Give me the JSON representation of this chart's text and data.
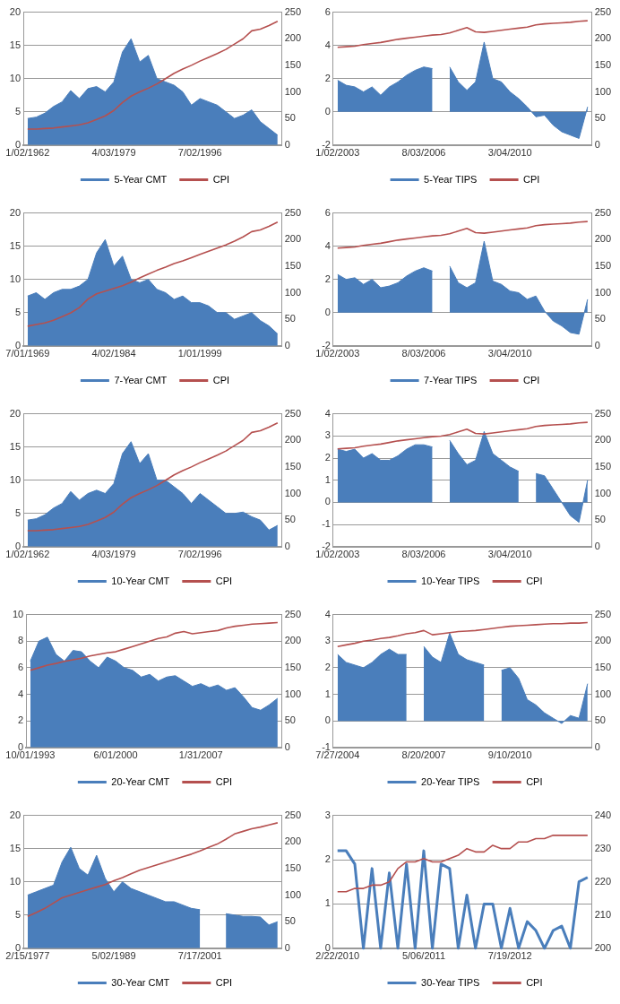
{
  "chart_data": [
    {
      "type": "area",
      "categories": [
        "1/02/1962",
        null,
        null,
        null,
        null,
        null,
        null,
        null,
        null,
        null,
        "4/03/1979",
        null,
        null,
        null,
        null,
        null,
        null,
        null,
        null,
        null,
        "7/02/1996",
        null,
        null,
        null,
        null,
        null,
        null,
        null,
        null,
        null
      ],
      "ylim": [
        0,
        20
      ],
      "yticks": [
        0,
        5,
        10,
        15,
        20
      ],
      "y2lim": [
        0,
        250
      ],
      "y2ticks": [
        0,
        50,
        100,
        150,
        200,
        250
      ],
      "grid": "y",
      "legend": "bottom",
      "marker": "none",
      "series": [
        {
          "name": "5-Year CMT",
          "color": "#4a7ebb",
          "values": [
            4,
            4.2,
            4.8,
            5.8,
            6.5,
            8.2,
            7,
            8.5,
            8.8,
            8,
            9.5,
            14,
            16,
            12.5,
            13.5,
            10,
            9.5,
            9,
            8,
            6,
            7,
            6.5,
            6,
            5,
            4,
            4.5,
            5.3,
            3.5,
            2.5,
            1.5
          ]
        },
        {
          "name": "CPI",
          "type": "line",
          "axis": "y2",
          "color": "#b5504f",
          "values": [
            30,
            30,
            31,
            32,
            34,
            36,
            38,
            42,
            48,
            55,
            65,
            80,
            92,
            100,
            107,
            115,
            125,
            135,
            143,
            150,
            158,
            165,
            172,
            180,
            190,
            200,
            215,
            218,
            225,
            233
          ]
        }
      ]
    },
    {
      "type": "area",
      "categories": [
        "1/02/2003",
        null,
        null,
        null,
        null,
        null,
        null,
        null,
        null,
        null,
        "8/03/2006",
        null,
        null,
        null,
        null,
        null,
        null,
        null,
        null,
        null,
        "3/04/2010",
        null,
        null,
        null,
        null,
        null,
        null,
        null,
        null,
        null
      ],
      "ylim": [
        -2,
        6
      ],
      "yticks": [
        -2,
        0,
        2,
        4,
        6
      ],
      "y2lim": [
        0,
        250
      ],
      "y2ticks": [
        0,
        50,
        100,
        150,
        200,
        250
      ],
      "grid": "y",
      "legend": "bottom",
      "marker": "none",
      "series": [
        {
          "name": "5-Year TIPS",
          "color": "#4a7ebb",
          "values": [
            1.9,
            1.6,
            1.5,
            1.2,
            1.5,
            1,
            1.5,
            1.8,
            2.2,
            2.5,
            2.7,
            2.6,
            null,
            2.7,
            1.8,
            1.3,
            1.8,
            4.2,
            2,
            1.8,
            1.2,
            0.8,
            0.3,
            -0.3,
            -0.2,
            -0.8,
            -1.2,
            -1.4,
            -1.6,
            0.3
          ]
        },
        {
          "name": "CPI",
          "type": "line",
          "axis": "y2",
          "color": "#b5504f",
          "values": [
            184,
            185,
            186,
            189,
            191,
            193,
            196,
            199,
            201,
            203,
            205,
            207,
            208,
            211,
            216,
            221,
            213,
            212,
            214,
            216,
            218,
            220,
            222,
            226,
            228,
            229,
            230,
            231,
            233,
            234
          ]
        }
      ]
    },
    {
      "type": "area",
      "categories": [
        "7/01/1969",
        null,
        null,
        null,
        null,
        null,
        null,
        null,
        null,
        null,
        "4/02/1984",
        null,
        null,
        null,
        null,
        null,
        null,
        null,
        null,
        null,
        "1/01/1999",
        null,
        null,
        null,
        null,
        null,
        null,
        null,
        null,
        null
      ],
      "ylim": [
        0,
        20
      ],
      "yticks": [
        0,
        5,
        10,
        15,
        20
      ],
      "y2lim": [
        0,
        250
      ],
      "y2ticks": [
        0,
        50,
        100,
        150,
        200,
        250
      ],
      "grid": "y",
      "legend": "bottom",
      "marker": "none",
      "series": [
        {
          "name": "7-Year CMT",
          "color": "#4a7ebb",
          "values": [
            7.5,
            8,
            7,
            8,
            8.5,
            8.5,
            9,
            10,
            14,
            16,
            12,
            13.5,
            10,
            9.5,
            10,
            8.5,
            8,
            7,
            7.5,
            6.5,
            6.5,
            6,
            5,
            5,
            4,
            4.5,
            5,
            3.8,
            3,
            1.8
          ]
        },
        {
          "name": "CPI",
          "type": "line",
          "axis": "y2",
          "color": "#b5504f",
          "values": [
            37,
            40,
            43,
            48,
            55,
            62,
            72,
            88,
            98,
            103,
            108,
            113,
            120,
            128,
            135,
            142,
            148,
            155,
            160,
            166,
            172,
            178,
            184,
            190,
            197,
            205,
            215,
            218,
            225,
            233
          ]
        }
      ]
    },
    {
      "type": "area",
      "categories": [
        "1/02/2003",
        null,
        null,
        null,
        null,
        null,
        null,
        null,
        null,
        null,
        "8/03/2006",
        null,
        null,
        null,
        null,
        null,
        null,
        null,
        null,
        null,
        "3/04/2010",
        null,
        null,
        null,
        null,
        null,
        null,
        null,
        null,
        null
      ],
      "ylim": [
        -2,
        6
      ],
      "yticks": [
        -2,
        0,
        2,
        4,
        6
      ],
      "y2lim": [
        0,
        250
      ],
      "y2ticks": [
        0,
        50,
        100,
        150,
        200,
        250
      ],
      "grid": "y",
      "legend": "bottom",
      "marker": "none",
      "series": [
        {
          "name": "7-Year TIPS",
          "color": "#4a7ebb",
          "values": [
            2.3,
            2,
            2.1,
            1.7,
            2,
            1.5,
            1.6,
            1.8,
            2.2,
            2.5,
            2.7,
            2.5,
            null,
            2.8,
            1.8,
            1.5,
            1.8,
            4.3,
            1.9,
            1.7,
            1.3,
            1.2,
            0.8,
            1,
            0.1,
            -0.5,
            -0.8,
            -1.2,
            -1.3,
            0.8
          ]
        },
        {
          "name": "CPI",
          "type": "line",
          "axis": "y2",
          "color": "#b5504f",
          "values": [
            184,
            185,
            186,
            189,
            191,
            193,
            196,
            199,
            201,
            203,
            205,
            207,
            208,
            211,
            216,
            221,
            213,
            212,
            214,
            216,
            218,
            220,
            222,
            226,
            228,
            229,
            230,
            231,
            233,
            234
          ]
        }
      ]
    },
    {
      "type": "area",
      "categories": [
        "1/02/1962",
        null,
        null,
        null,
        null,
        null,
        null,
        null,
        null,
        null,
        "4/03/1979",
        null,
        null,
        null,
        null,
        null,
        null,
        null,
        null,
        null,
        "7/02/1996",
        null,
        null,
        null,
        null,
        null,
        null,
        null,
        null,
        null
      ],
      "ylim": [
        0,
        20
      ],
      "yticks": [
        0,
        5,
        10,
        15,
        20
      ],
      "y2lim": [
        0,
        250
      ],
      "y2ticks": [
        0,
        50,
        100,
        150,
        200,
        250
      ],
      "grid": "y",
      "legend": "bottom",
      "marker": "none",
      "series": [
        {
          "name": "10-Year CMT",
          "color": "#4a7ebb",
          "values": [
            4,
            4.2,
            4.8,
            5.8,
            6.5,
            8.3,
            7,
            8,
            8.5,
            8,
            9.5,
            14,
            15.8,
            12.5,
            14,
            10,
            10,
            9,
            8,
            6.5,
            8,
            7,
            6,
            5,
            5,
            5.2,
            4.5,
            4,
            2.5,
            3.2
          ]
        },
        {
          "name": "CPI",
          "type": "line",
          "axis": "y2",
          "color": "#b5504f",
          "values": [
            30,
            30,
            31,
            32,
            34,
            36,
            38,
            42,
            48,
            55,
            65,
            80,
            92,
            100,
            107,
            115,
            125,
            135,
            143,
            150,
            158,
            165,
            172,
            180,
            190,
            200,
            215,
            218,
            225,
            233
          ]
        }
      ]
    },
    {
      "type": "area",
      "categories": [
        "1/02/2003",
        null,
        null,
        null,
        null,
        null,
        null,
        null,
        null,
        null,
        "8/03/2006",
        null,
        null,
        null,
        null,
        null,
        null,
        null,
        null,
        null,
        "3/04/2010",
        null,
        null,
        null,
        null,
        null,
        null,
        null,
        null,
        null
      ],
      "ylim": [
        -2,
        4
      ],
      "yticks": [
        -2,
        -1,
        0,
        1,
        2,
        3,
        4
      ],
      "y2lim": [
        0,
        250
      ],
      "y2ticks": [
        0,
        50,
        100,
        150,
        200,
        250
      ],
      "grid": "y",
      "legend": "bottom",
      "marker": "none",
      "series": [
        {
          "name": "10-Year TIPS",
          "color": "#4a7ebb",
          "values": [
            2.4,
            2.3,
            2.4,
            2,
            2.2,
            1.9,
            1.9,
            2.1,
            2.4,
            2.6,
            2.6,
            2.5,
            null,
            2.8,
            2.2,
            1.7,
            1.9,
            3.2,
            2.2,
            1.9,
            1.6,
            1.4,
            null,
            1.3,
            1.2,
            0.6,
            0,
            -0.6,
            -0.9,
            1
          ]
        },
        {
          "name": "CPI",
          "type": "line",
          "axis": "y2",
          "color": "#b5504f",
          "values": [
            184,
            185,
            186,
            189,
            191,
            193,
            196,
            199,
            201,
            203,
            205,
            207,
            208,
            211,
            216,
            221,
            213,
            212,
            214,
            216,
            218,
            220,
            222,
            226,
            228,
            229,
            230,
            231,
            233,
            234
          ]
        }
      ]
    },
    {
      "type": "area",
      "categories": [
        "10/01/1993",
        null,
        null,
        null,
        null,
        null,
        null,
        null,
        null,
        null,
        "6/01/2000",
        null,
        null,
        null,
        null,
        null,
        null,
        null,
        null,
        null,
        "1/31/2007",
        null,
        null,
        null,
        null,
        null,
        null,
        null,
        null,
        null
      ],
      "ylim": [
        0,
        10
      ],
      "yticks": [
        0,
        2,
        4,
        6,
        8,
        10
      ],
      "y2lim": [
        0,
        250
      ],
      "y2ticks": [
        0,
        50,
        100,
        150,
        200,
        250
      ],
      "grid": "y",
      "legend": "bottom",
      "marker": "none",
      "series": [
        {
          "name": "20-Year CMT",
          "color": "#4a7ebb",
          "values": [
            6.5,
            8,
            8.3,
            7,
            6.5,
            7.3,
            7.2,
            6.5,
            6,
            6.8,
            6.5,
            6,
            5.8,
            5.3,
            5.5,
            5,
            5.3,
            5.4,
            5,
            4.6,
            4.8,
            4.5,
            4.7,
            4.3,
            4.5,
            3.8,
            3,
            2.8,
            3.2,
            3.7
          ]
        },
        {
          "name": "CPI",
          "type": "line",
          "axis": "y2",
          "color": "#b5504f",
          "values": [
            145,
            150,
            155,
            158,
            162,
            165,
            168,
            172,
            175,
            178,
            180,
            185,
            190,
            195,
            200,
            205,
            208,
            215,
            218,
            214,
            216,
            218,
            220,
            225,
            228,
            230,
            232,
            233,
            234,
            235
          ]
        }
      ]
    },
    {
      "type": "area",
      "categories": [
        "7/27/2004",
        null,
        null,
        null,
        null,
        null,
        null,
        null,
        null,
        null,
        "8/20/2007",
        null,
        null,
        null,
        null,
        null,
        null,
        null,
        null,
        null,
        "9/10/2010",
        null,
        null,
        null,
        null,
        null,
        null,
        null,
        null,
        null
      ],
      "ylim": [
        -1,
        4
      ],
      "yticks": [
        -1,
        0,
        1,
        2,
        3,
        4
      ],
      "y2lim": [
        0,
        250
      ],
      "y2ticks": [
        0,
        50,
        100,
        150,
        200,
        250
      ],
      "grid": "y",
      "legend": "bottom",
      "marker": "none",
      "series": [
        {
          "name": "20-Year TIPS",
          "color": "#4a7ebb",
          "values": [
            2.5,
            2.2,
            2.1,
            2,
            2.2,
            2.5,
            2.7,
            2.5,
            2.5,
            null,
            2.8,
            2.4,
            2.2,
            3.3,
            2.5,
            2.3,
            2.2,
            2.1,
            null,
            1.9,
            2,
            1.6,
            0.8,
            0.6,
            0.3,
            0.1,
            -0.1,
            0.2,
            0.1,
            1.4
          ]
        },
        {
          "name": "CPI",
          "type": "line",
          "axis": "y2",
          "color": "#b5504f",
          "values": [
            190,
            193,
            196,
            200,
            202,
            205,
            207,
            210,
            214,
            216,
            220,
            212,
            214,
            216,
            218,
            219,
            220,
            222,
            224,
            226,
            228,
            229,
            230,
            231,
            232,
            233,
            233,
            234,
            234,
            235
          ]
        }
      ]
    },
    {
      "type": "area",
      "categories": [
        "2/15/1977",
        null,
        null,
        null,
        null,
        null,
        null,
        null,
        null,
        null,
        "5/02/1989",
        null,
        null,
        null,
        null,
        null,
        null,
        null,
        null,
        null,
        "7/17/2001",
        null,
        null,
        null,
        null,
        null,
        null,
        null,
        null,
        null
      ],
      "ylim": [
        0,
        20
      ],
      "yticks": [
        0,
        5,
        10,
        15,
        20
      ],
      "y2lim": [
        0,
        250
      ],
      "y2ticks": [
        0,
        50,
        100,
        150,
        200,
        250
      ],
      "grid": "y",
      "legend": "bottom",
      "marker": "none",
      "series": [
        {
          "name": "30-Year CMT",
          "color": "#4a7ebb",
          "values": [
            8,
            8.5,
            9,
            9.5,
            13,
            15.2,
            12,
            11,
            14,
            10.5,
            8.5,
            10,
            9,
            8.5,
            8,
            7.5,
            7,
            7,
            6.5,
            6,
            5.8,
            null,
            null,
            5.2,
            5,
            4.8,
            4.8,
            4.7,
            3.5,
            4
          ]
        },
        {
          "name": "CPI",
          "type": "line",
          "axis": "y2",
          "color": "#b5504f",
          "values": [
            60,
            67,
            75,
            85,
            95,
            100,
            105,
            110,
            115,
            120,
            127,
            133,
            140,
            147,
            152,
            157,
            162,
            167,
            172,
            177,
            183,
            190,
            196,
            205,
            215,
            220,
            225,
            228,
            232,
            236
          ]
        }
      ]
    },
    {
      "type": "line",
      "categories": [
        "2/22/2010",
        null,
        null,
        null,
        null,
        null,
        null,
        null,
        null,
        null,
        "5/06/2011",
        null,
        null,
        null,
        null,
        null,
        null,
        null,
        null,
        null,
        "7/19/2012",
        null,
        null,
        null,
        null,
        null,
        null,
        null,
        null,
        null
      ],
      "ylim": [
        0,
        3
      ],
      "yticks": [
        0,
        1,
        2,
        3
      ],
      "y2lim": [
        200,
        240
      ],
      "y2ticks": [
        200,
        210,
        220,
        230,
        240
      ],
      "grid": "y",
      "legend": "bottom",
      "marker": "none",
      "series": [
        {
          "name": "30-Year TIPS",
          "color": "#4a7ebb",
          "values": [
            2.2,
            2.2,
            1.9,
            0,
            1.8,
            0,
            1.7,
            0,
            1.9,
            0,
            2.2,
            0,
            1.9,
            1.8,
            0,
            1.2,
            0,
            1,
            1,
            0,
            0.9,
            0,
            0.6,
            0.4,
            0,
            0.4,
            0.5,
            0,
            1.5,
            1.6
          ]
        },
        {
          "name": "CPI",
          "type": "line",
          "axis": "y2",
          "color": "#b5504f",
          "values": [
            217,
            217,
            218,
            218,
            219,
            219,
            220,
            224,
            226,
            226,
            227,
            226,
            226,
            227,
            228,
            230,
            229,
            229,
            231,
            230,
            230,
            232,
            232,
            233,
            233,
            234,
            234,
            234,
            234,
            234
          ]
        }
      ]
    }
  ]
}
